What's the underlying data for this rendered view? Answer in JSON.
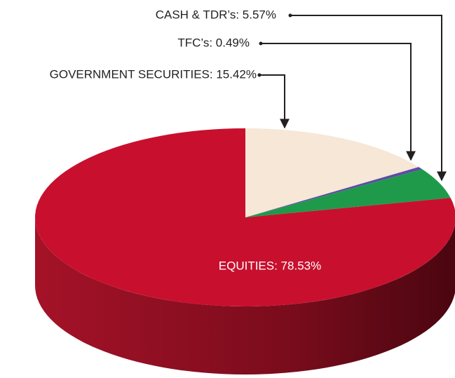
{
  "chart_data": {
    "type": "pie",
    "values": [
      15.42,
      0.49,
      5.57,
      78.53
    ],
    "value_labels": [
      "GOVERNMENT SECURITIES: 15.42%",
      "TFC’s: 0.49%",
      "CASH & TDR’s: 5.57%",
      "EQUITIES: 78.53%"
    ],
    "colors": [
      "#f6e7d7",
      "#5b4ea3",
      "#1f9a4b",
      "#c8102e"
    ]
  }
}
